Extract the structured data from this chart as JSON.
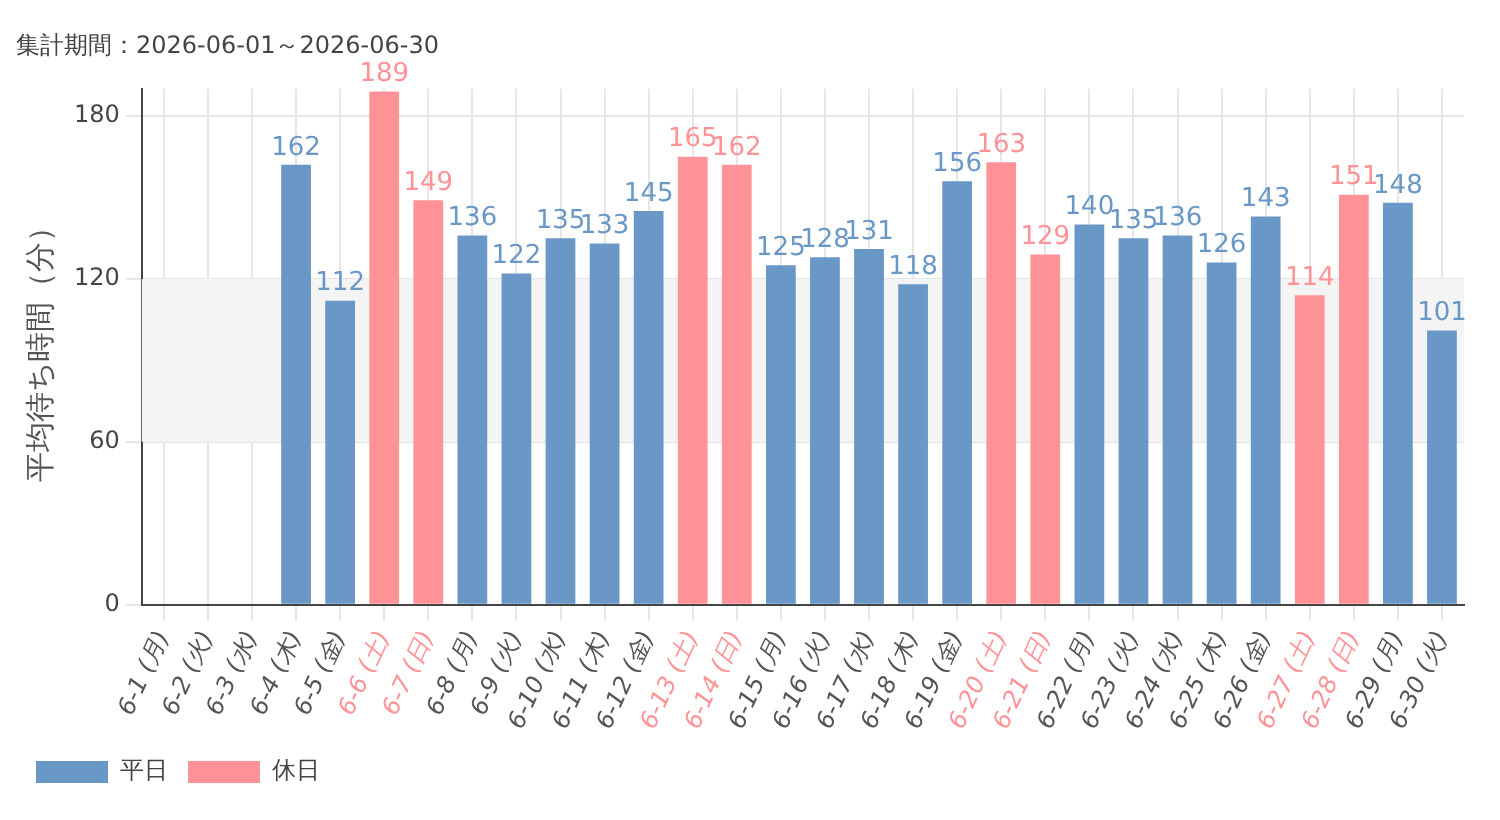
{
  "chart_data": {
    "type": "bar",
    "title": "集計期間：2026-06-01～2026-06-30",
    "ylabel": "平均待ち時間（分）",
    "categories": [
      "6-1 (月)",
      "6-2 (火)",
      "6-3 (水)",
      "6-4 (木)",
      "6-5 (金)",
      "6-6 (土)",
      "6-7 (日)",
      "6-8 (月)",
      "6-9 (火)",
      "6-10 (水)",
      "6-11 (木)",
      "6-12 (金)",
      "6-13 (土)",
      "6-14 (日)",
      "6-15 (月)",
      "6-16 (火)",
      "6-17 (水)",
      "6-18 (木)",
      "6-19 (金)",
      "6-20 (土)",
      "6-21 (日)",
      "6-22 (月)",
      "6-23 (火)",
      "6-24 (水)",
      "6-25 (木)",
      "6-26 (金)",
      "6-27 (土)",
      "6-28 (日)",
      "6-29 (月)",
      "6-30 (火)"
    ],
    "series": [
      {
        "name": "平日",
        "color": "#6a98c6",
        "values": [
          null,
          null,
          null,
          162,
          112,
          null,
          null,
          136,
          122,
          135,
          133,
          145,
          null,
          null,
          125,
          128,
          131,
          118,
          156,
          null,
          null,
          140,
          135,
          136,
          126,
          143,
          null,
          null,
          148,
          101
        ]
      },
      {
        "name": "休日",
        "color": "#ff9296",
        "values": [
          null,
          null,
          null,
          null,
          null,
          189,
          149,
          null,
          null,
          null,
          null,
          null,
          165,
          162,
          null,
          null,
          null,
          null,
          null,
          163,
          129,
          null,
          null,
          null,
          null,
          null,
          114,
          151,
          null,
          null
        ]
      }
    ],
    "stacked": true,
    "ylim": [
      0,
      190
    ],
    "yticks": [
      0,
      60,
      120,
      180
    ],
    "grid": true,
    "legend": "bottom left",
    "data_labels": true,
    "bands": [
      {
        "axis": "y",
        "from": 60,
        "to": 120,
        "color": "#f4f4f4"
      }
    ]
  }
}
